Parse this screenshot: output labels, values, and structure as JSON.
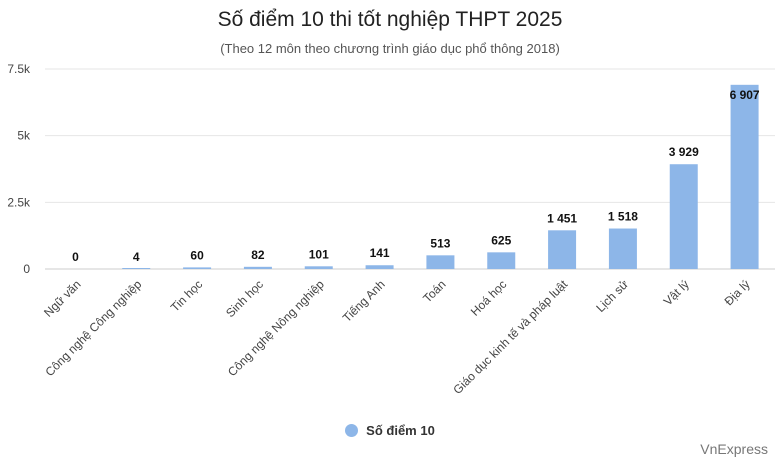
{
  "chart_data": {
    "type": "bar",
    "title": "Số điểm 10 thi tốt nghiệp THPT 2025",
    "subtitle": "(Theo 12 môn theo chương trình giáo dục phổ thông 2018)",
    "xlabel": "",
    "ylabel": "",
    "categories": [
      "Ngữ văn",
      "Công nghệ Công nghiệp",
      "Tin học",
      "Sinh học",
      "Công nghệ Nông nghiệp",
      "Tiếng Anh",
      "Toán",
      "Hoá học",
      "Giáo dục kinh tế và pháp luật",
      "Lịch sử",
      "Vật lý",
      "Địa lý"
    ],
    "series": [
      {
        "name": "Số điểm 10",
        "values": [
          0,
          4,
          60,
          82,
          101,
          141,
          513,
          625,
          1451,
          1518,
          3929,
          6907
        ],
        "data_labels": [
          "0",
          "4",
          "60",
          "82",
          "101",
          "141",
          "513",
          "625",
          "1 451",
          "1 518",
          "3 929",
          "6 907"
        ],
        "color": "#8db6e8"
      }
    ],
    "ylim": [
      0,
      7500
    ],
    "yticks": [
      0,
      2500,
      5000,
      7500
    ],
    "ytick_labels": [
      "0",
      "2.5k",
      "5k",
      "7.5k"
    ],
    "grid": true,
    "legend_position": "bottom"
  },
  "credit": "VnExpress",
  "colors": {
    "bar": "#8db6e8",
    "grid": "#e6e6e6",
    "axis": "#cccccc"
  }
}
